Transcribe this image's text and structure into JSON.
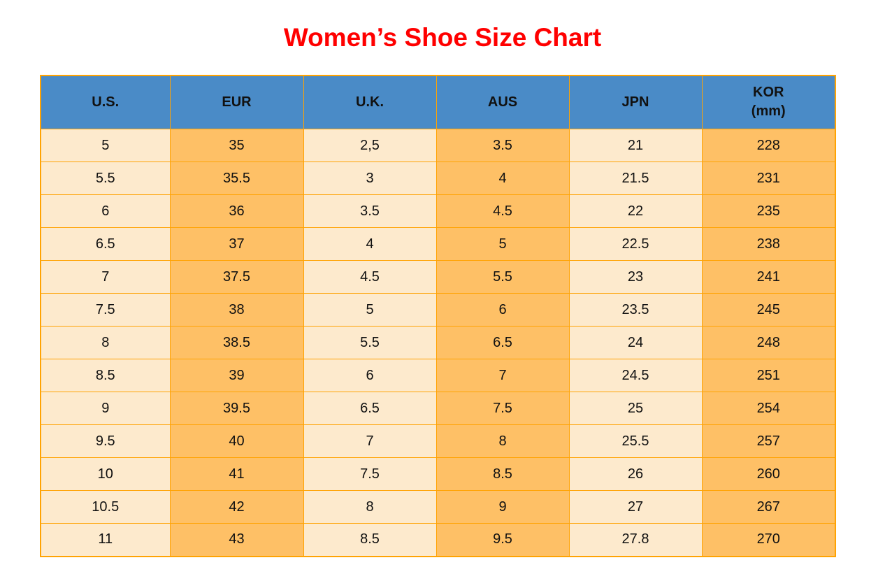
{
  "page": {
    "title": "Women’s Shoe Size Chart"
  },
  "colors": {
    "title_red": "#ff0000",
    "header_blue": "#4a8bc7",
    "column_cream": "#fdeacd",
    "column_orange": "#fec066",
    "border_orange": "#ffa303",
    "text_black": "#111111"
  },
  "table": {
    "columns": [
      {
        "id": "us",
        "label": "U.S."
      },
      {
        "id": "eur",
        "label": "EUR"
      },
      {
        "id": "uk",
        "label": "U.K."
      },
      {
        "id": "aus",
        "label": "AUS"
      },
      {
        "id": "jpn",
        "label": "JPN"
      },
      {
        "id": "kor",
        "label": "KOR",
        "sublabel": "(mm)"
      }
    ],
    "rows": [
      [
        "5",
        "35",
        "2,5",
        "3.5",
        "21",
        "228"
      ],
      [
        "5.5",
        "35.5",
        "3",
        "4",
        "21.5",
        "231"
      ],
      [
        "6",
        "36",
        "3.5",
        "4.5",
        "22",
        "235"
      ],
      [
        "6.5",
        "37",
        "4",
        "5",
        "22.5",
        "238"
      ],
      [
        "7",
        "37.5",
        "4.5",
        "5.5",
        "23",
        "241"
      ],
      [
        "7.5",
        "38",
        "5",
        "6",
        "23.5",
        "245"
      ],
      [
        "8",
        "38.5",
        "5.5",
        "6.5",
        "24",
        "248"
      ],
      [
        "8.5",
        "39",
        "6",
        "7",
        "24.5",
        "251"
      ],
      [
        "9",
        "39.5",
        "6.5",
        "7.5",
        "25",
        "254"
      ],
      [
        "9.5",
        "40",
        "7",
        "8",
        "25.5",
        "257"
      ],
      [
        "10",
        "41",
        "7.5",
        "8.5",
        "26",
        "260"
      ],
      [
        "10.5",
        "42",
        "8",
        "9",
        "27",
        "267"
      ],
      [
        "11",
        "43",
        "8.5",
        "9.5",
        "27.8",
        "270"
      ]
    ]
  },
  "chart_data": {
    "type": "table",
    "title": "Women’s Shoe Size Chart",
    "columns": [
      "U.S.",
      "EUR",
      "U.K.",
      "AUS",
      "JPN",
      "KOR (mm)"
    ],
    "rows": [
      [
        "5",
        "35",
        "2,5",
        "3.5",
        "21",
        "228"
      ],
      [
        "5.5",
        "35.5",
        "3",
        "4",
        "21.5",
        "231"
      ],
      [
        "6",
        "36",
        "3.5",
        "4.5",
        "22",
        "235"
      ],
      [
        "6.5",
        "37",
        "4",
        "5",
        "22.5",
        "238"
      ],
      [
        "7",
        "37.5",
        "4.5",
        "5.5",
        "23",
        "241"
      ],
      [
        "7.5",
        "38",
        "5",
        "6",
        "23.5",
        "245"
      ],
      [
        "8",
        "38.5",
        "5.5",
        "6.5",
        "24",
        "248"
      ],
      [
        "8.5",
        "39",
        "6",
        "7",
        "24.5",
        "251"
      ],
      [
        "9",
        "39.5",
        "6.5",
        "7.5",
        "25",
        "254"
      ],
      [
        "9.5",
        "40",
        "7",
        "8",
        "25.5",
        "257"
      ],
      [
        "10",
        "41",
        "7.5",
        "8.5",
        "26",
        "260"
      ],
      [
        "10.5",
        "42",
        "8",
        "9",
        "27",
        "267"
      ],
      [
        "11",
        "43",
        "8.5",
        "9.5",
        "27.8",
        "270"
      ]
    ],
    "layout": {
      "header_background": "#4a8bc7",
      "odd_column_background": "#fdeacd",
      "even_column_background": "#fec066",
      "grid": true,
      "grid_color": "#ffa303"
    }
  }
}
